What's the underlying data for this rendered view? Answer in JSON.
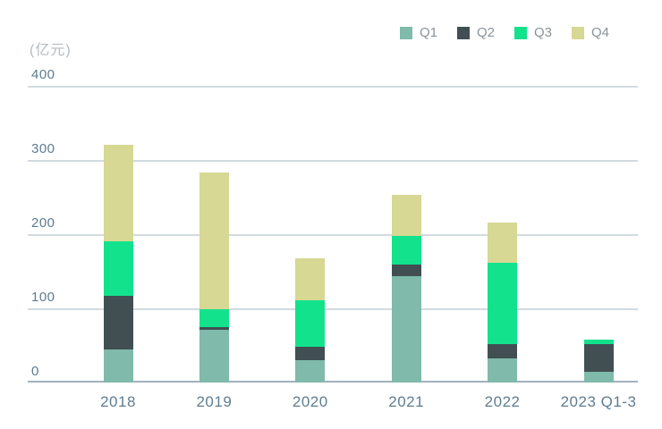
{
  "unit_label": "(亿元)",
  "colors": {
    "q1": "#7fbaaa",
    "q2": "#414f53",
    "q3": "#13e28c",
    "q4": "#d6d894",
    "gridline": "#d2dbe0",
    "baseline": "#a3b1bb",
    "axis_text": "#5e7d93",
    "unit_text": "#b3bcc2",
    "legend_text": "#8a929a",
    "background": "#ffffff"
  },
  "chart_data": {
    "type": "bar",
    "stacked": true,
    "title": "",
    "xlabel": "",
    "ylabel": "(亿元)",
    "categories": [
      "2018",
      "2019",
      "2020",
      "2021",
      "2022",
      "2023 Q1-3"
    ],
    "series": [
      {
        "name": "Q1",
        "color": "#7fbaaa",
        "values": [
          45,
          71,
          30,
          143,
          32,
          15
        ]
      },
      {
        "name": "Q2",
        "color": "#414f53",
        "values": [
          72,
          4,
          18,
          16,
          20,
          37
        ]
      },
      {
        "name": "Q3",
        "color": "#13e28c",
        "values": [
          73,
          24,
          63,
          39,
          109,
          6
        ]
      },
      {
        "name": "Q4",
        "color": "#d6d894",
        "values": [
          130,
          184,
          56,
          55,
          55,
          0
        ]
      }
    ],
    "totals": [
      320,
      283,
      167,
      253,
      216,
      58
    ],
    "yticks": [
      0,
      100,
      200,
      300,
      400
    ],
    "ylim": [
      0,
      400
    ],
    "grid": true,
    "legend_position": "top-right"
  }
}
